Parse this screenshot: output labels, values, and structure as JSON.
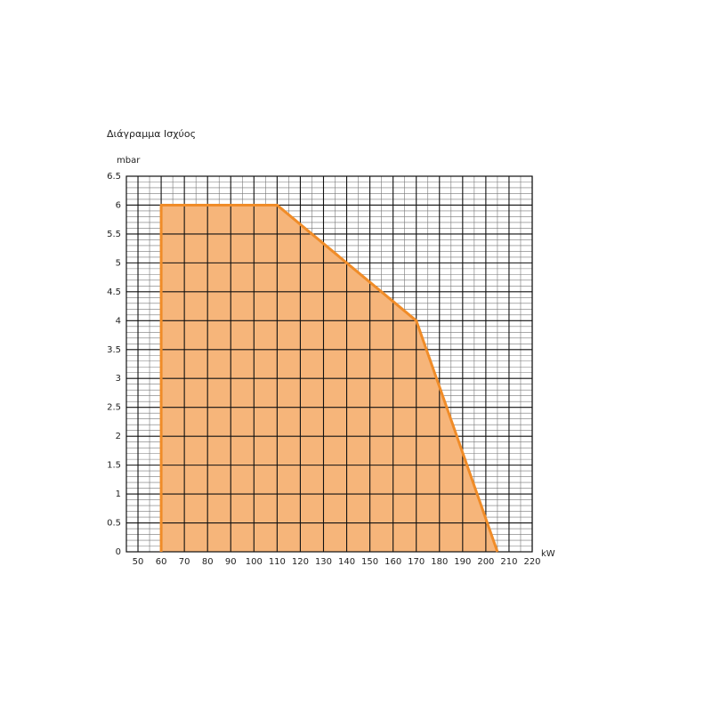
{
  "chart_data": {
    "type": "area",
    "title": "Διάγραμμα Ισχύος",
    "y_label": "mbar",
    "x_label": "kW",
    "x": [
      60,
      60,
      110,
      170,
      205
    ],
    "values": [
      0,
      6,
      6,
      4,
      0
    ],
    "color": "#f08c28",
    "fill_color": "#f6b57a",
    "xlim": [
      45,
      220
    ],
    "xticks": [
      50,
      60,
      70,
      80,
      90,
      100,
      110,
      120,
      130,
      140,
      150,
      160,
      170,
      180,
      190,
      200,
      210,
      220
    ],
    "ylim": [
      0,
      6.5
    ],
    "yticks": [
      0,
      0.5,
      1,
      1.5,
      2,
      2.5,
      3,
      3.5,
      4,
      4.5,
      5,
      5.5,
      6,
      6.5
    ],
    "grid": true
  }
}
